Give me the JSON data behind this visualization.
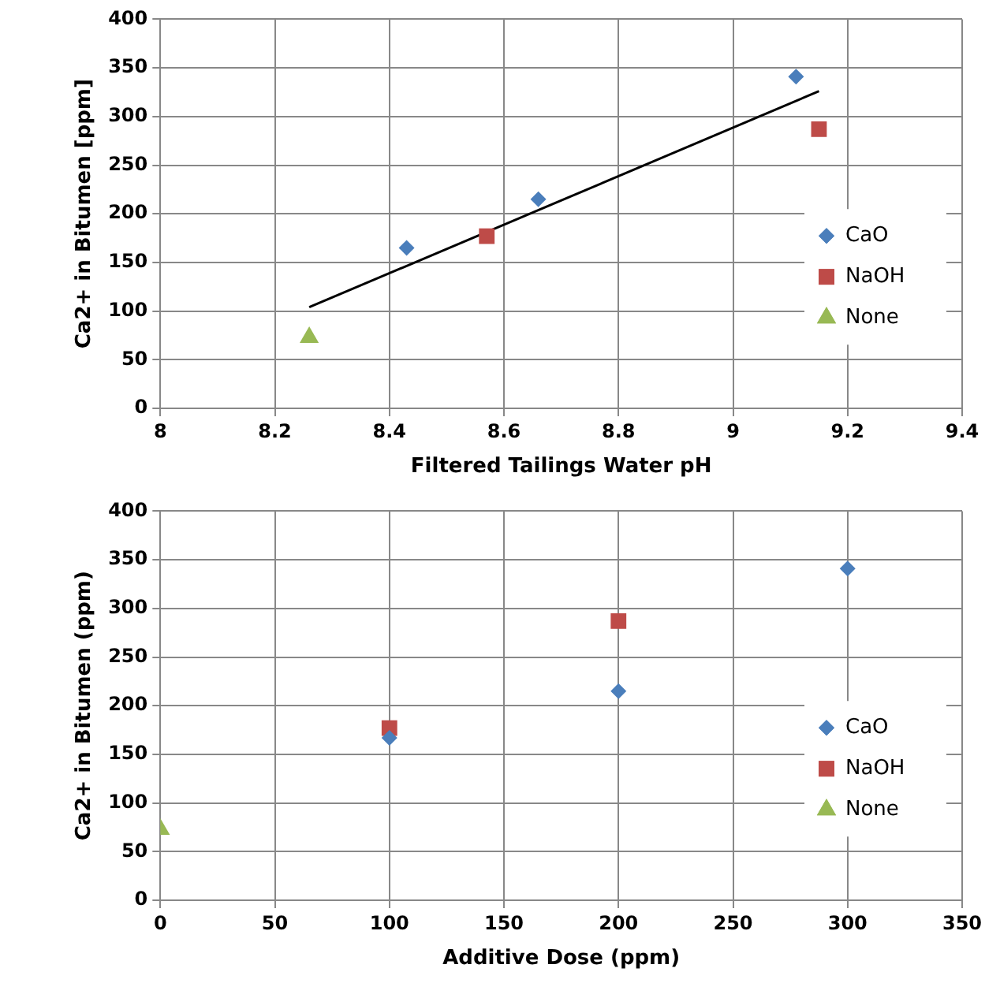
{
  "chart_data": [
    {
      "type": "scatter",
      "xlabel": "Filtered Tailings Water pH",
      "ylabel": "Ca2+ in Bitumen [ppm]",
      "xlim": [
        8,
        9.4
      ],
      "xticks": [
        8,
        8.2,
        8.4,
        8.6,
        8.8,
        9,
        9.2,
        9.4
      ],
      "ylim": [
        0,
        400
      ],
      "yticks": [
        0,
        50,
        100,
        150,
        200,
        250,
        300,
        350,
        400
      ],
      "grid": true,
      "legend": "right",
      "series": [
        {
          "name": "CaO",
          "color": "#4a7ebb",
          "marker": "diamond",
          "x": [
            8.43,
            8.66,
            9.11
          ],
          "values": [
            165,
            215,
            341
          ]
        },
        {
          "name": "NaOH",
          "color": "#be4b48",
          "marker": "square",
          "x": [
            8.57,
            9.15
          ],
          "values": [
            177,
            287
          ]
        },
        {
          "name": "None",
          "color": "#98b954",
          "marker": "triangle",
          "x": [
            8.26
          ],
          "values": [
            73
          ]
        },
        {
          "type": "line",
          "color": "#000000",
          "marker": "none",
          "x": [
            8.26,
            9.15
          ],
          "values": [
            104,
            326
          ]
        }
      ]
    },
    {
      "type": "scatter",
      "xlabel": "Additive Dose (ppm)",
      "ylabel": "Ca2+ in Bitumen (ppm)",
      "xlim": [
        0,
        350
      ],
      "xticks": [
        0,
        50,
        100,
        150,
        200,
        250,
        300,
        350
      ],
      "ylim": [
        0,
        400
      ],
      "yticks": [
        0,
        50,
        100,
        150,
        200,
        250,
        300,
        350,
        400
      ],
      "grid": true,
      "legend": "right",
      "series": [
        {
          "name": "CaO",
          "color": "#4a7ebb",
          "marker": "diamond",
          "x": [
            100,
            200,
            300
          ],
          "values": [
            167,
            215,
            341
          ]
        },
        {
          "name": "NaOH",
          "color": "#be4b48",
          "marker": "square",
          "x": [
            100,
            200
          ],
          "values": [
            177,
            287
          ]
        },
        {
          "name": "None",
          "color": "#98b954",
          "marker": "triangle",
          "x": [
            0
          ],
          "values": [
            73
          ]
        }
      ]
    }
  ]
}
